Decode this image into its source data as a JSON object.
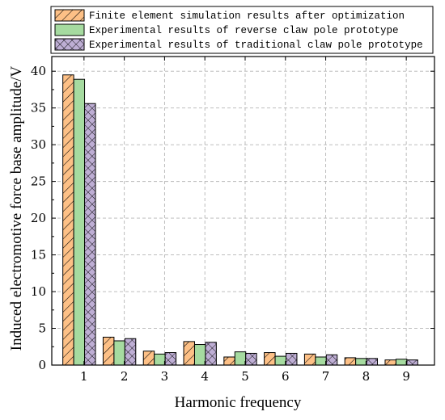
{
  "chart_data": {
    "type": "bar",
    "xlabel": "Harmonic frequency",
    "ylabel": "Induced electromotive force base amplitude/V",
    "categories": [
      "1",
      "2",
      "3",
      "4",
      "5",
      "6",
      "7",
      "8",
      "9"
    ],
    "ylim": [
      0,
      42
    ],
    "yticks": [
      0,
      5,
      10,
      15,
      20,
      25,
      30,
      35,
      40
    ],
    "grid": true,
    "legend_position": "top",
    "series": [
      {
        "name": "Finite element simulation results after optimization",
        "color": "#FDC086",
        "pattern": "diagonal-hatch",
        "values": [
          39.5,
          3.8,
          1.9,
          3.2,
          1.1,
          1.7,
          1.5,
          1.0,
          0.7
        ]
      },
      {
        "name": "Experimental results of reverse claw pole prototype",
        "color": "#A6DBA0",
        "pattern": "solid",
        "values": [
          38.9,
          3.3,
          1.5,
          2.8,
          1.8,
          1.2,
          1.1,
          0.9,
          0.8
        ]
      },
      {
        "name": "Experimental results of traditional claw pole prototype",
        "color": "#BEAED4",
        "pattern": "cross-hatch",
        "values": [
          35.6,
          3.6,
          1.7,
          3.1,
          1.6,
          1.6,
          1.4,
          0.9,
          0.7
        ]
      }
    ]
  }
}
